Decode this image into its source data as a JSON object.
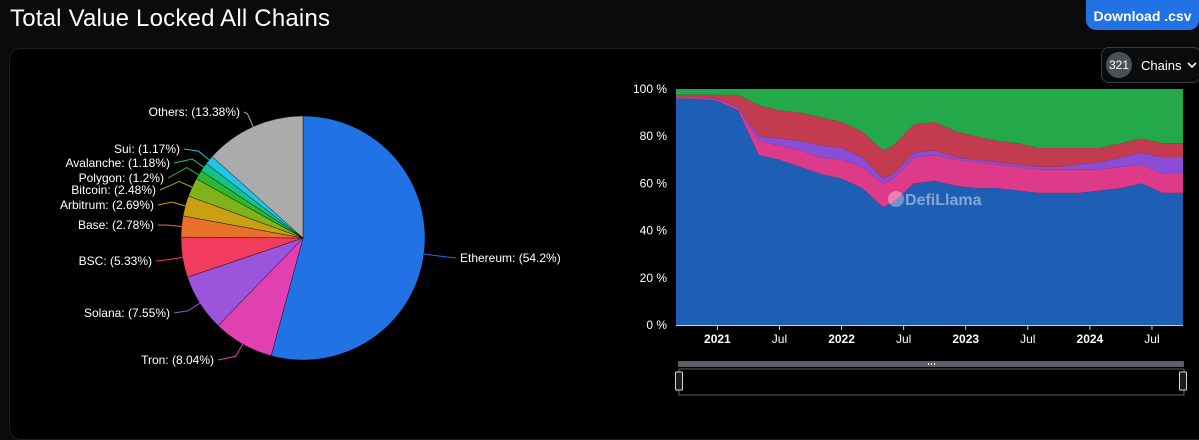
{
  "header": {
    "title": "Total Value Locked All Chains",
    "download_label": "Download .csv"
  },
  "chains_selector": {
    "count": "321",
    "label": "Chains"
  },
  "watermark": "DefiLlama",
  "colors": {
    "background": "#000000",
    "accent": "#2172e5"
  },
  "chart_data": [
    {
      "type": "pie",
      "labels": [
        "Ethereum",
        "Tron",
        "Solana",
        "BSC",
        "Base",
        "Arbitrum",
        "Bitcoin",
        "Polygon",
        "Avalanche",
        "Sui",
        "Others"
      ],
      "values": [
        54.2,
        8.04,
        7.55,
        5.33,
        2.78,
        2.69,
        2.48,
        1.2,
        1.18,
        1.17,
        13.38
      ],
      "display_labels": [
        "Ethereum: (54.2%)",
        "Tron: (8.04%)",
        "Solana: (7.55%)",
        "BSC: (5.33%)",
        "Base: (2.78%)",
        "Arbitrum: (2.69%)",
        "Bitcoin: (2.48%)",
        "Polygon: (1.2%)",
        "Avalanche: (1.18%)",
        "Sui: (1.17%)",
        "Others: (13.38%)"
      ],
      "colors": [
        "#2172e5",
        "#e040b0",
        "#9b55dd",
        "#f23c5e",
        "#e8722c",
        "#c9a012",
        "#80b21a",
        "#2fb52f",
        "#14c18a",
        "#1fc6e8",
        "#ababab"
      ]
    },
    {
      "type": "area",
      "stacking": "percent",
      "y_ticks": [
        "0 %",
        "20 %",
        "40 %",
        "60 %",
        "80 %",
        "100 %"
      ],
      "x_ticks": [
        "2021",
        "Jul",
        "2022",
        "Jul",
        "2023",
        "Jul",
        "2024",
        "Jul"
      ],
      "x_tick_dates": [
        "2021-01",
        "2021-07",
        "2022-01",
        "2022-07",
        "2023-01",
        "2023-07",
        "2024-01",
        "2024-07"
      ],
      "x_range": [
        "2020-09",
        "2024-10"
      ],
      "ylim": [
        0,
        100
      ],
      "grid": false,
      "x": [
        "2020-09",
        "2020-11",
        "2021-01",
        "2021-03",
        "2021-05",
        "2021-07",
        "2021-09",
        "2021-11",
        "2022-01",
        "2022-03",
        "2022-05",
        "2022-06",
        "2022-08",
        "2022-10",
        "2022-12",
        "2023-02",
        "2023-04",
        "2023-06",
        "2023-08",
        "2023-10",
        "2023-12",
        "2024-02",
        "2024-04",
        "2024-06",
        "2024-08",
        "2024-10"
      ],
      "series": [
        {
          "name": "Ethereum",
          "color": "#1e5eb5",
          "values": [
            96,
            96,
            95,
            91,
            72,
            70,
            67,
            64,
            62,
            58,
            50,
            52,
            60,
            61,
            59,
            58,
            58,
            57,
            56,
            56,
            56,
            57,
            58,
            60,
            56,
            56
          ]
        },
        {
          "name": "Tron",
          "color": "#dd3b8a",
          "values": [
            0.5,
            0.6,
            0.8,
            1,
            6,
            6,
            7,
            7,
            8,
            9,
            10,
            10,
            11,
            11,
            11,
            11,
            10,
            10,
            10,
            10,
            10,
            9,
            9,
            8,
            8,
            8
          ]
        },
        {
          "name": "Solana",
          "color": "#8a4dd6",
          "values": [
            0,
            0,
            0.2,
            0.5,
            2,
            3,
            4,
            5,
            5,
            4,
            2,
            2,
            2,
            2,
            1,
            1,
            1,
            1,
            1,
            1,
            2,
            3,
            4,
            5,
            7,
            7
          ]
        },
        {
          "name": "BSC",
          "color": "#c33b4e",
          "values": [
            1,
            1,
            1.5,
            5,
            13,
            12,
            12,
            12,
            11,
            11,
            12,
            12,
            12,
            12,
            11,
            10,
            9,
            9,
            8,
            8,
            7,
            6,
            6,
            6,
            6,
            6
          ]
        },
        {
          "name": "Others",
          "color": "#24a94a",
          "values": [
            2.5,
            2.4,
            2.5,
            2.5,
            7,
            9,
            10,
            12,
            14,
            18,
            26,
            24,
            15,
            14,
            18,
            20,
            22,
            23,
            25,
            25,
            25,
            25,
            23,
            21,
            23,
            23
          ]
        }
      ]
    }
  ]
}
